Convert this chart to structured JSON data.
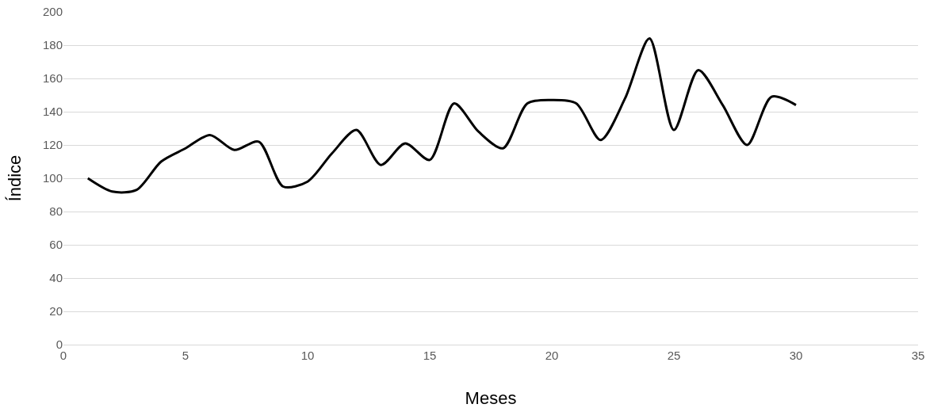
{
  "chart_data": {
    "type": "line",
    "xlabel": "Meses",
    "ylabel": "Índice",
    "x": [
      1,
      2,
      3,
      4,
      5,
      6,
      7,
      8,
      9,
      10,
      11,
      12,
      13,
      14,
      15,
      16,
      17,
      18,
      19,
      20,
      21,
      22,
      23,
      24,
      25,
      26,
      27,
      28,
      29,
      30
    ],
    "series": [
      {
        "color": "#000000",
        "values": [
          100,
          92,
          93,
          110,
          118,
          126,
          117,
          122,
          95,
          98,
          115,
          129,
          108,
          121,
          111,
          145,
          128,
          118,
          145,
          147,
          145,
          123,
          148,
          184,
          129,
          165,
          144,
          120,
          149,
          144
        ]
      }
    ],
    "xlim": [
      0,
      35
    ],
    "xticks": [
      0,
      5,
      10,
      15,
      20,
      25,
      30,
      35
    ],
    "ylim": [
      0,
      200
    ],
    "yticks": [
      0,
      20,
      40,
      60,
      80,
      100,
      120,
      140,
      160,
      180,
      200
    ],
    "grid": "y",
    "legend": false,
    "marker": "none",
    "line_style": "solid"
  }
}
